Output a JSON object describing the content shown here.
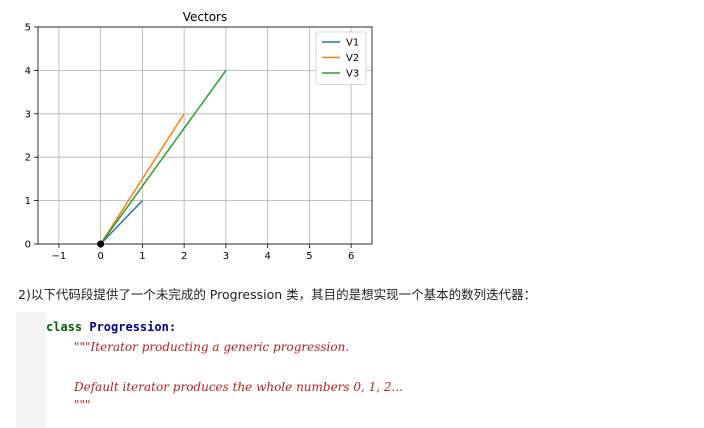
{
  "chart_data": {
    "type": "line",
    "title": "Vectors",
    "xlim": [
      -1.5,
      6.5
    ],
    "ylim": [
      0,
      5
    ],
    "xticks": [
      "−1",
      "0",
      "1",
      "2",
      "3",
      "4",
      "5",
      "6"
    ],
    "yticks": [
      "0",
      "1",
      "2",
      "3",
      "4",
      "5"
    ],
    "grid": true,
    "legend_position": "top-right",
    "origin_marker": [
      0,
      0
    ],
    "series": [
      {
        "name": "V1",
        "color": "#1f77b4",
        "x": [
          0,
          1
        ],
        "y": [
          0,
          1
        ]
      },
      {
        "name": "V2",
        "color": "#ff7f0e",
        "x": [
          0,
          2
        ],
        "y": [
          0,
          3
        ]
      },
      {
        "name": "V3",
        "color": "#2ca02c",
        "x": [
          0,
          3
        ],
        "y": [
          0,
          4
        ]
      }
    ]
  },
  "paragraph": "2)以下代码段提供了一个未完成的 Progression 类，其目的是想实现一个基本的数列迭代器：",
  "code": {
    "keyword": "class",
    "class_name": "Progression",
    "colon": ":",
    "doc_line1": "\"\"\"Iterator producting a generic progression.",
    "doc_line2": "Default iterator produces the whole numbers 0, 1, 2...",
    "doc_line3": "\"\"\""
  }
}
